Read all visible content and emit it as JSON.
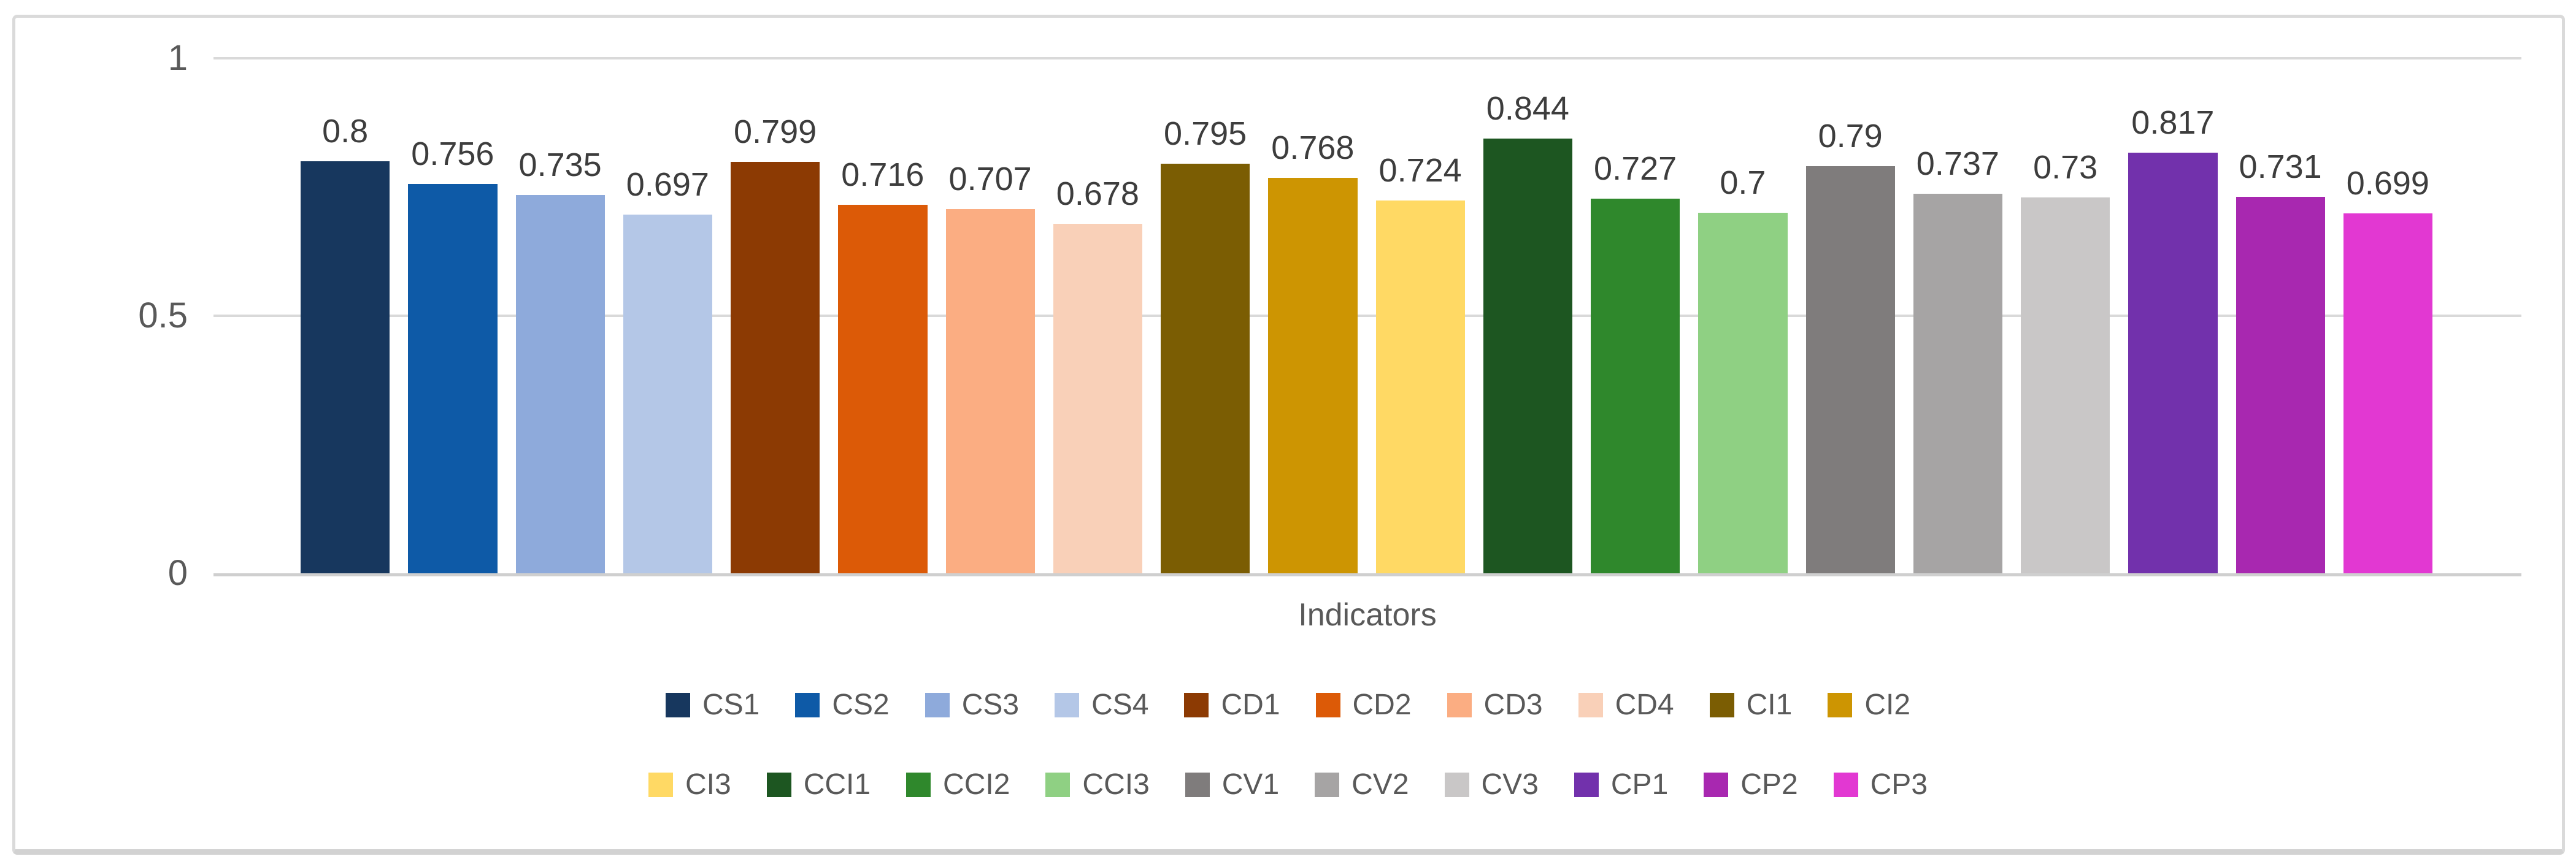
{
  "figure": {
    "x_axis_title": "Indicators",
    "ytick_labels": [
      "1",
      "0.5",
      "0"
    ]
  },
  "chart_data": {
    "type": "bar",
    "title": "",
    "xlabel": "Indicators",
    "ylabel": "",
    "ylim": [
      0,
      1
    ],
    "yticks": [
      0,
      0.5,
      1
    ],
    "grid": true,
    "legend_position": "bottom",
    "legend_rows": [
      [
        "CS1",
        "CS2",
        "CS3",
        "CS4",
        "CD1",
        "CD2",
        "CD3",
        "CD4",
        "CI1",
        "CI2"
      ],
      [
        "CI3",
        "CCI1",
        "CCI2",
        "CCI3",
        "CV1",
        "CV2",
        "CV3",
        "CP1",
        "CP2",
        "CP3"
      ]
    ],
    "categories": [
      "CS1",
      "CS2",
      "CS3",
      "CS4",
      "CD1",
      "CD2",
      "CD3",
      "CD4",
      "CI1",
      "CI2",
      "CI3",
      "CCI1",
      "CCI2",
      "CCI3",
      "CV1",
      "CV2",
      "CV3",
      "CP1",
      "CP2",
      "CP3"
    ],
    "values": [
      0.8,
      0.756,
      0.735,
      0.697,
      0.799,
      0.716,
      0.707,
      0.678,
      0.795,
      0.768,
      0.724,
      0.844,
      0.727,
      0.7,
      0.79,
      0.737,
      0.73,
      0.817,
      0.731,
      0.699
    ],
    "bar_labels": [
      "0.8",
      "0.756",
      "0.735",
      "0.697",
      "0.799",
      "0.716",
      "0.707",
      "0.678",
      "0.795",
      "0.768",
      "0.724",
      "0.844",
      "0.727",
      "0.7",
      "0.79",
      "0.737",
      "0.73",
      "0.817",
      "0.731",
      "0.699"
    ],
    "colors": [
      "#17375E",
      "#0E5AA7",
      "#8EAADB",
      "#B4C7E7",
      "#8C3A03",
      "#DC5A07",
      "#FBAD82",
      "#F9D0B8",
      "#7B5D03",
      "#CD9502",
      "#FFD964",
      "#1D5621",
      "#2F882C",
      "#8FD083",
      "#7F7C7C",
      "#A6A4A4",
      "#C9C7C7",
      "#7231AC",
      "#A828B0",
      "#E238D2"
    ]
  }
}
